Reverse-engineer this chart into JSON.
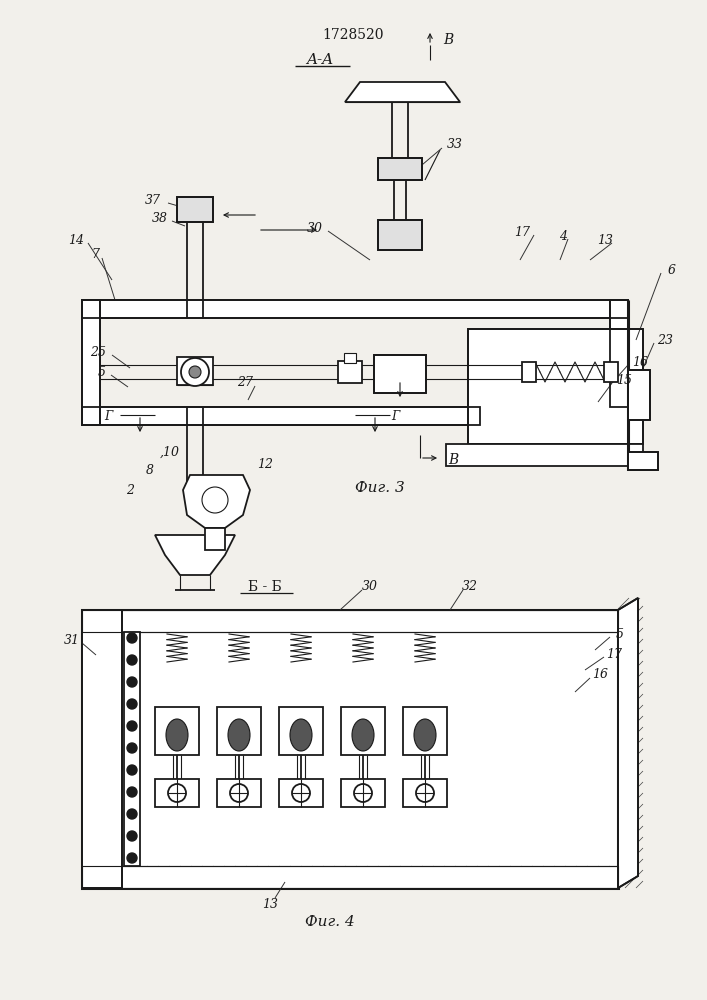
{
  "title": "1728520",
  "fig3_caption": "Фиг. 3",
  "fig4_caption": "Фиг. 4",
  "bg_color": "#f2f0eb",
  "line_color": "#1a1a1a"
}
